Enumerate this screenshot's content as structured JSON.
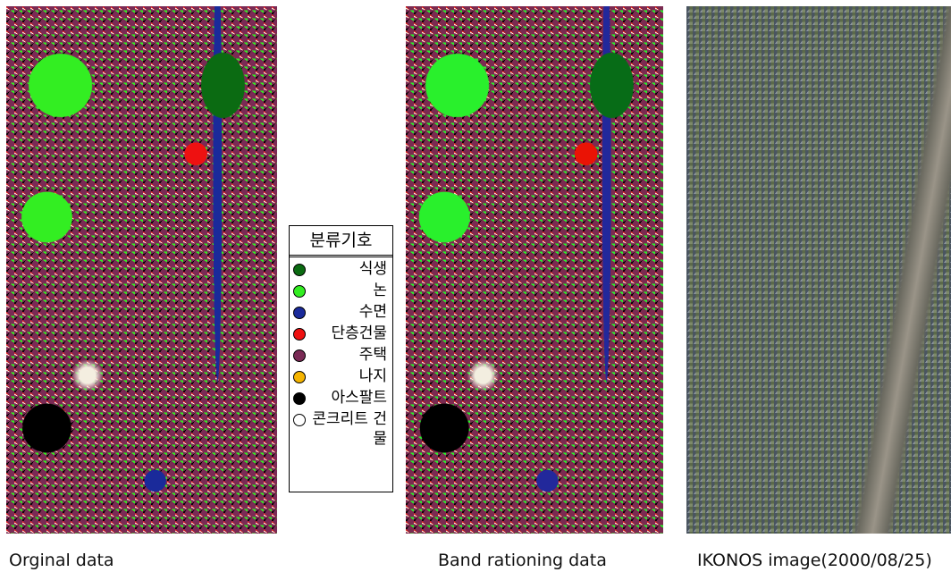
{
  "legend": {
    "title": "분류기호",
    "items": [
      {
        "label": "식생",
        "color": "#0b6b12"
      },
      {
        "label": "논",
        "color": "#33ee22"
      },
      {
        "label": "수면",
        "color": "#1a2a9a"
      },
      {
        "label": "단층건물",
        "color": "#ee1111"
      },
      {
        "label": "주택",
        "color": "#7a2a55"
      },
      {
        "label": "나지",
        "color": "#f5b400"
      },
      {
        "label": "아스팔트",
        "color": "#000000"
      },
      {
        "label": "콘크리트 건물",
        "color": "#ffffff"
      }
    ]
  },
  "captions": [
    "Orginal data",
    "Band rationing data",
    "IKONOS image(2000/08/25)"
  ]
}
